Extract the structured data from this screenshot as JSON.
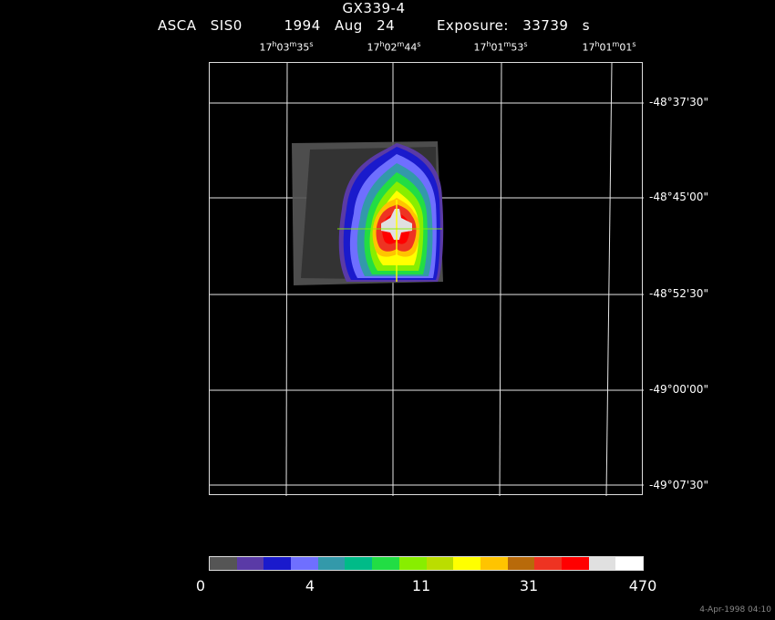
{
  "header": {
    "target": "GX339-4",
    "obs_line": "ASCA SIS0   1994 Aug 24   Exposure: 33739 s"
  },
  "ra_labels": [
    {
      "h": "17",
      "m": "03",
      "s": "35"
    },
    {
      "h": "17",
      "m": "02",
      "s": "44"
    },
    {
      "h": "17",
      "m": "01",
      "s": "53"
    },
    {
      "h": "17",
      "m": "01",
      "s": "01"
    }
  ],
  "dec_labels": [
    "-48°37'30\"",
    "-48°45'00\"",
    "-48°52'30\"",
    "-49°00'00\"",
    "-49°07'30\""
  ],
  "colorbar": {
    "colors": [
      "#555555",
      "#5a3aa6",
      "#1a1acc",
      "#6f6fff",
      "#3399aa",
      "#00bb88",
      "#22dd44",
      "#88ee00",
      "#bbdd00",
      "#ffff00",
      "#ffc400",
      "#b86a0a",
      "#ee3322",
      "#ff0000",
      "#e0e0e0",
      "#ffffff"
    ],
    "labels": [
      "0",
      "4",
      "11",
      "31",
      "470"
    ]
  },
  "timestamp": "4-Apr-1998 04:10"
}
